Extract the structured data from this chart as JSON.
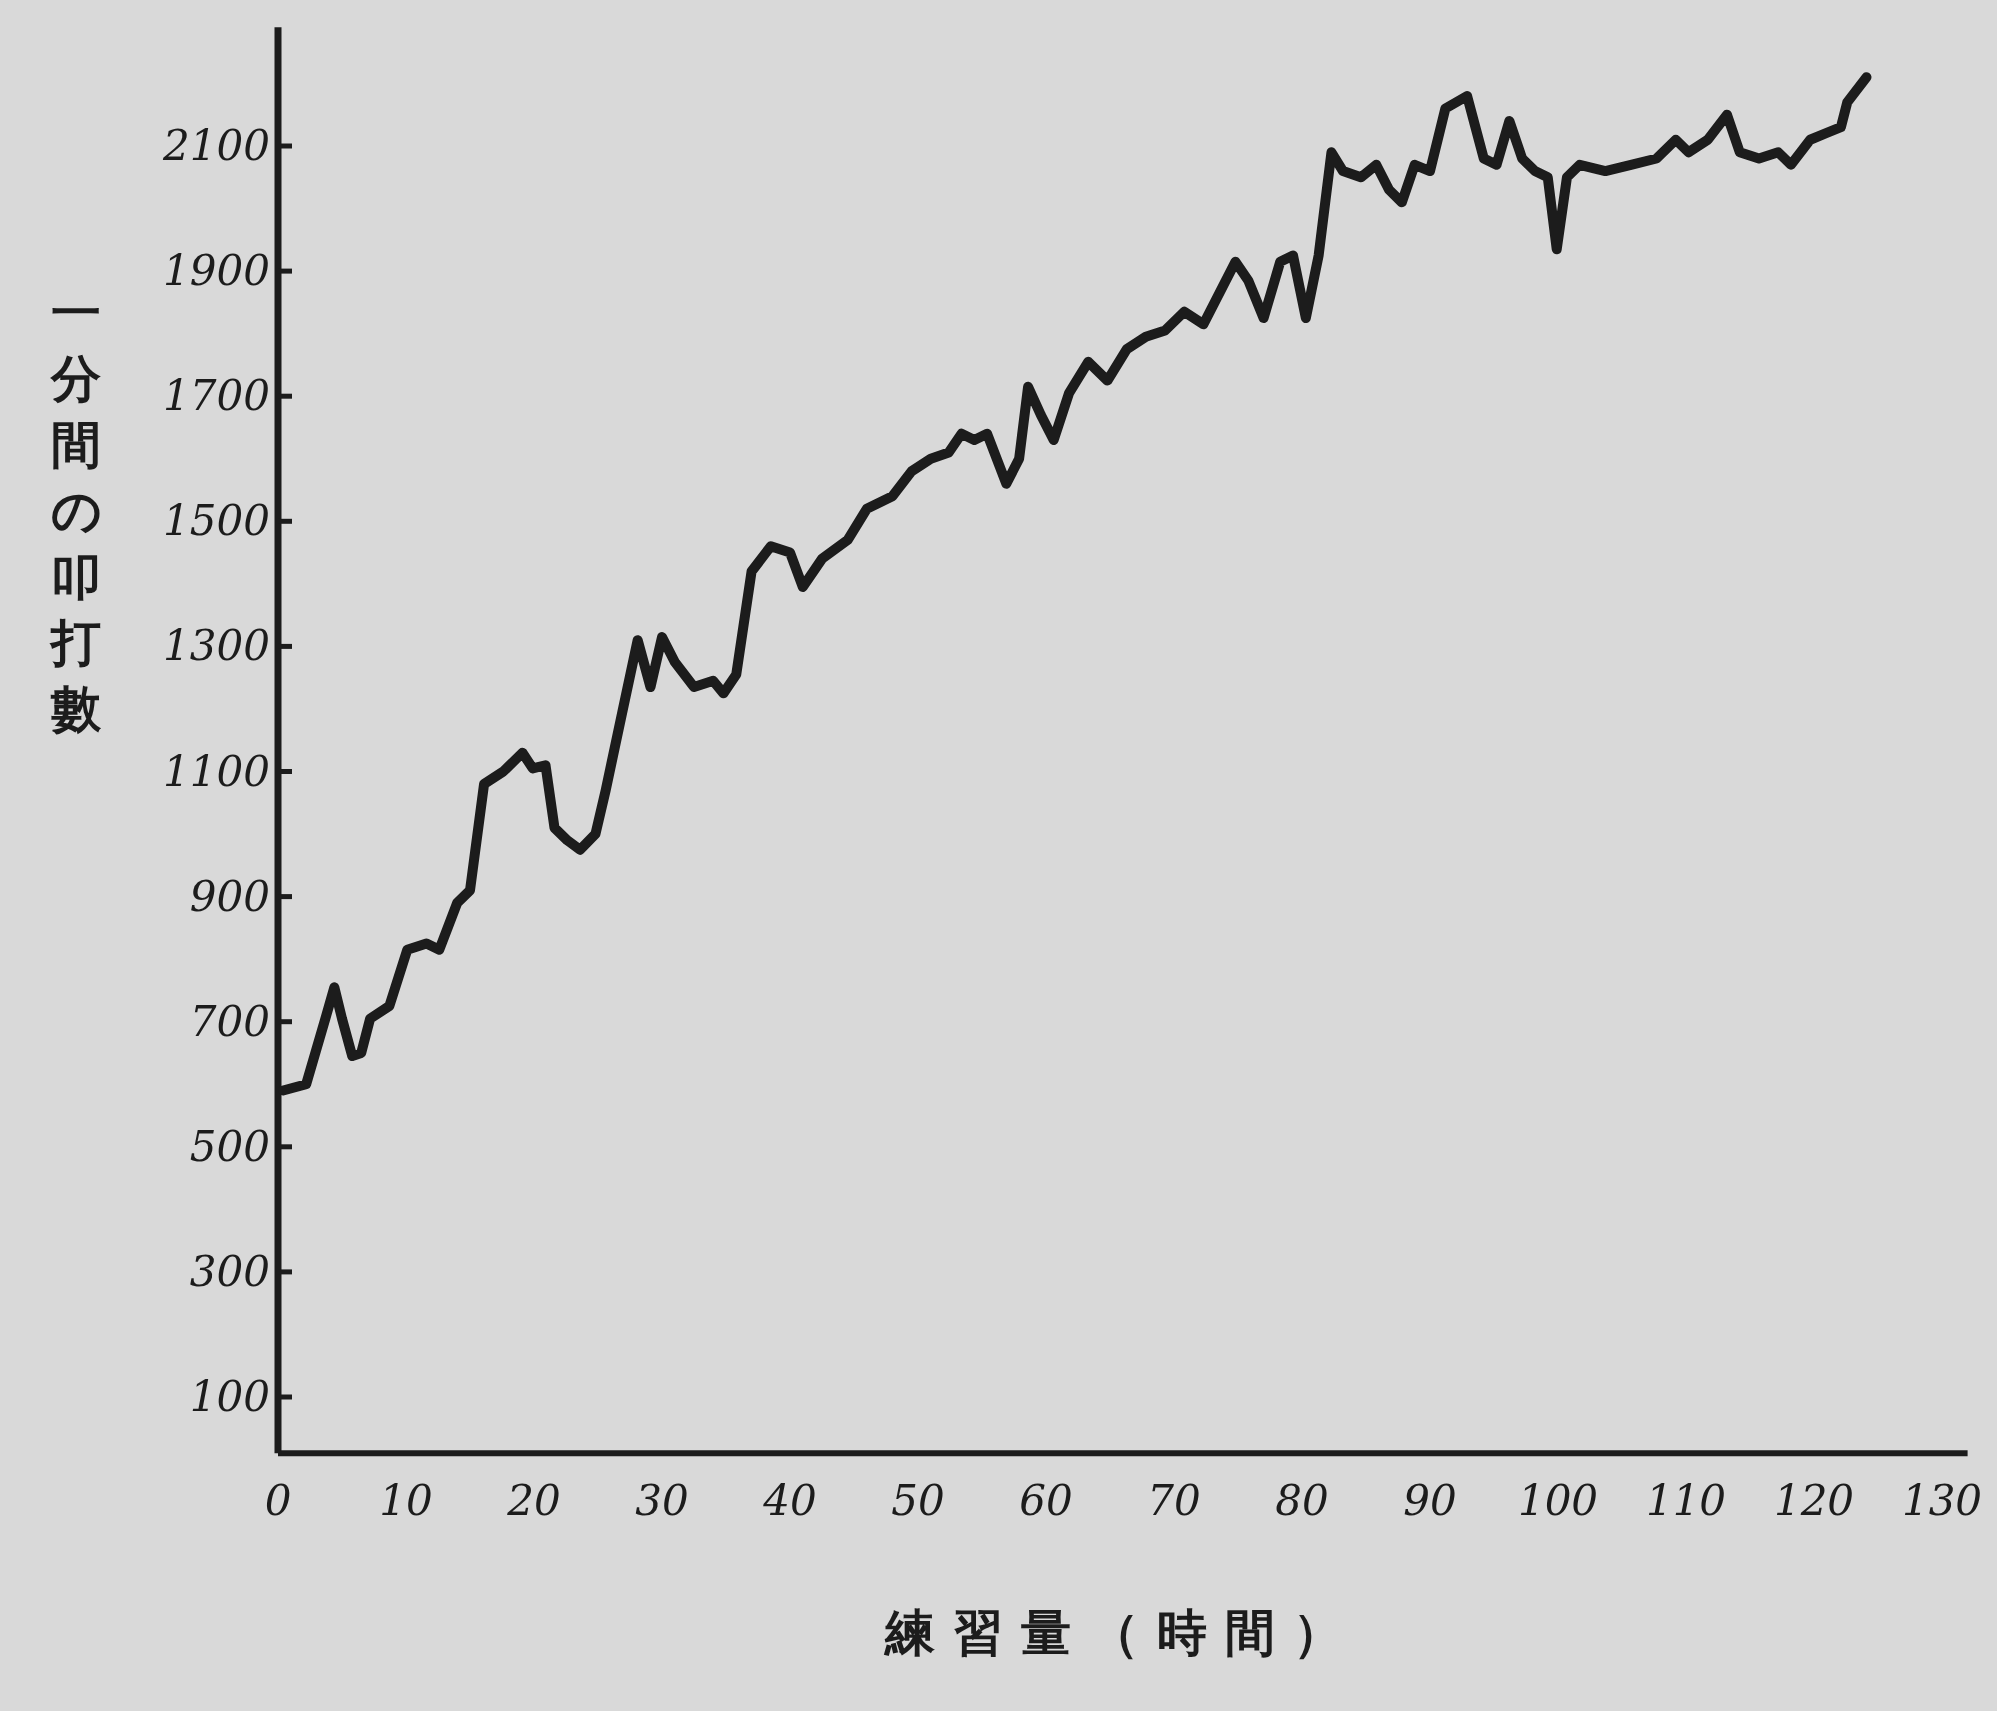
{
  "chart_data": {
    "type": "line",
    "xlabel": "練習量（時間）",
    "ylabel": "一分間の叩打數",
    "color": "#1c1c1c",
    "line_style": "solid",
    "xlim": [
      0,
      132
    ],
    "ylim": [
      10,
      2290
    ],
    "xticks": [
      0,
      10,
      20,
      30,
      40,
      50,
      60,
      70,
      80,
      90,
      100,
      110,
      120,
      130
    ],
    "yticks": [
      100,
      300,
      500,
      700,
      900,
      1100,
      1300,
      1500,
      1700,
      1900,
      2100
    ],
    "x": [
      0.4,
      2.2,
      3.7,
      4.4,
      5.0,
      5.8,
      6.5,
      7.2,
      8.7,
      10.1,
      11.6,
      12.6,
      14.0,
      15.0,
      16.1,
      17.6,
      19.1,
      19.9,
      20.9,
      21.6,
      22.6,
      23.6,
      24.8,
      25.6,
      26.9,
      28.1,
      29.1,
      30.0,
      31.0,
      32.5,
      34.0,
      34.8,
      35.8,
      37.0,
      38.5,
      40.0,
      41.0,
      42.5,
      44.5,
      46.0,
      48.0,
      49.5,
      51.0,
      52.4,
      53.4,
      54.4,
      55.4,
      56.9,
      57.9,
      58.6,
      59.6,
      60.6,
      61.8,
      63.3,
      64.8,
      66.3,
      67.8,
      69.3,
      70.8,
      72.3,
      73.8,
      74.8,
      75.8,
      77.0,
      78.3,
      79.3,
      80.3,
      81.3,
      82.3,
      83.2,
      84.6,
      85.8,
      86.8,
      87.8,
      88.8,
      90.0,
      91.2,
      92.9,
      94.2,
      95.2,
      96.2,
      97.2,
      98.2,
      99.2,
      99.9,
      100.7,
      101.7,
      103.7,
      105.7,
      107.7,
      109.2,
      110.2,
      111.7,
      113.2,
      114.2,
      115.7,
      117.2,
      118.2,
      119.7,
      120.9,
      122.1,
      122.6,
      124.1
    ],
    "values": [
      590,
      600,
      705,
      755,
      705,
      645,
      650,
      705,
      725,
      815,
      825,
      815,
      890,
      910,
      1080,
      1100,
      1130,
      1105,
      1110,
      1010,
      990,
      975,
      1000,
      1070,
      1195,
      1310,
      1235,
      1315,
      1275,
      1235,
      1245,
      1225,
      1255,
      1420,
      1460,
      1450,
      1395,
      1440,
      1470,
      1520,
      1540,
      1580,
      1600,
      1610,
      1640,
      1630,
      1640,
      1560,
      1600,
      1715,
      1670,
      1630,
      1705,
      1755,
      1725,
      1775,
      1795,
      1805,
      1835,
      1815,
      1875,
      1915,
      1885,
      1825,
      1915,
      1925,
      1825,
      1925,
      2090,
      2060,
      2050,
      2070,
      2030,
      2010,
      2070,
      2060,
      2160,
      2180,
      2080,
      2070,
      2140,
      2080,
      2060,
      2050,
      1935,
      2050,
      2070,
      2060,
      2070,
      2080,
      2110,
      2090,
      2110,
      2150,
      2090,
      2080,
      2090,
      2070,
      2110,
      2120,
      2130,
      2170,
      2210
    ]
  }
}
